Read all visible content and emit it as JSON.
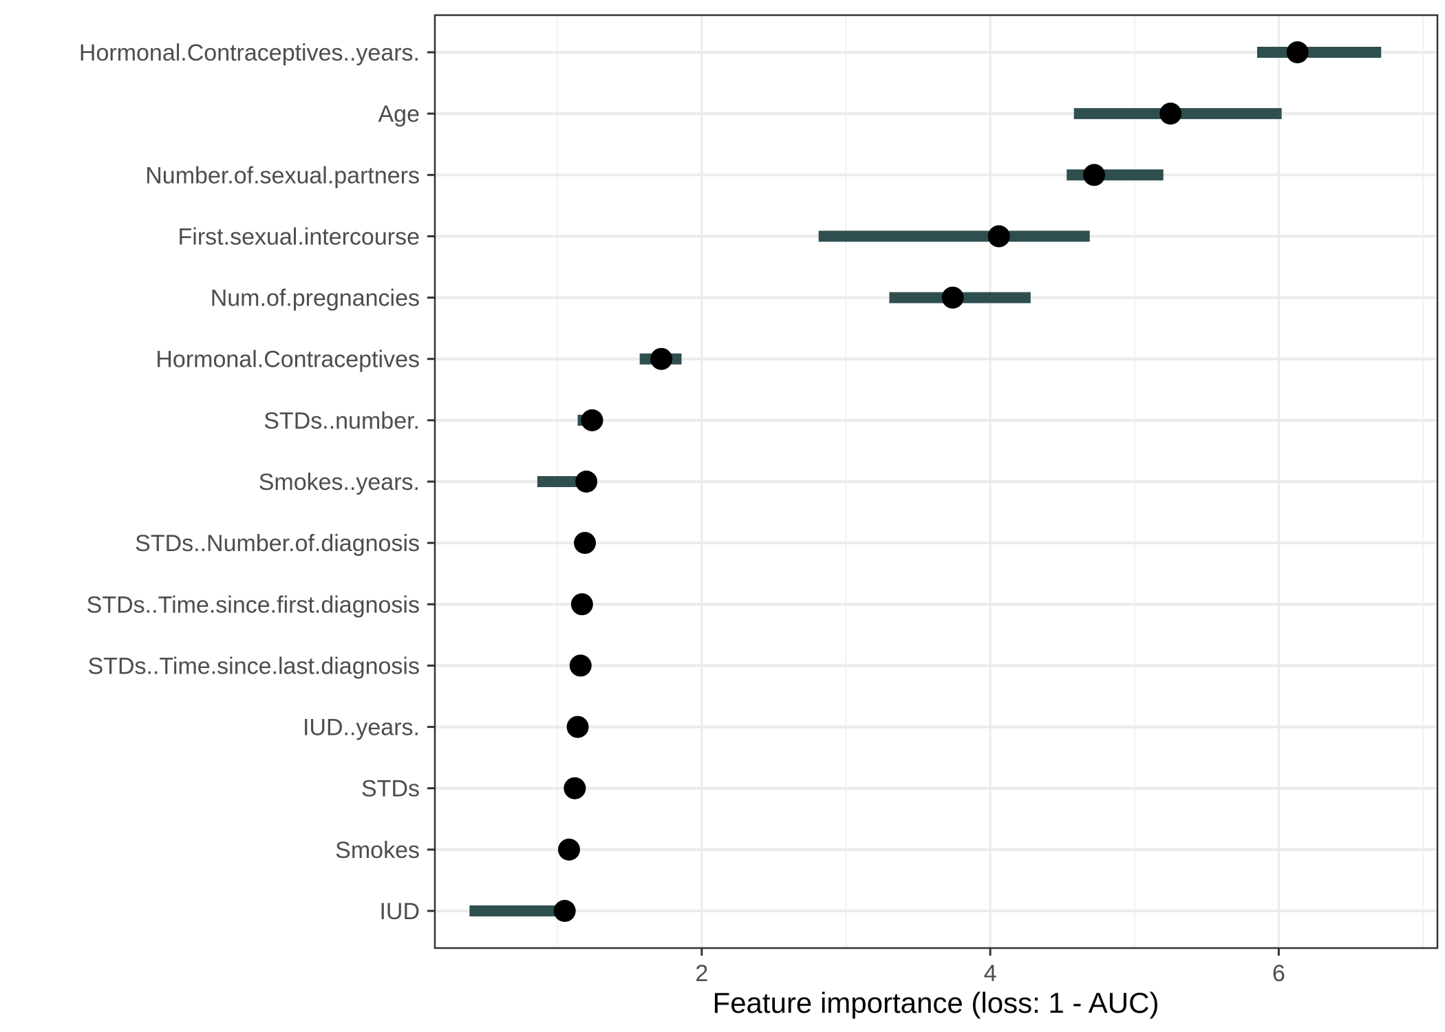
{
  "chart_data": {
    "type": "dot-interval",
    "xlabel": "Feature importance (loss: 1 - AUC)",
    "ylabel": "",
    "xlim": [
      0.15,
      7.1
    ],
    "x_ticks": [
      2,
      4,
      6
    ],
    "x_tick_labels": [
      "2",
      "4",
      "6"
    ],
    "grid": true,
    "legend": "none",
    "features": [
      {
        "name": "Hormonal.Contraceptives..years.",
        "importance": 6.13,
        "lower": 5.85,
        "upper": 6.71
      },
      {
        "name": "Age",
        "importance": 5.25,
        "lower": 4.58,
        "upper": 6.02
      },
      {
        "name": "Number.of.sexual.partners",
        "importance": 4.72,
        "lower": 4.53,
        "upper": 5.2
      },
      {
        "name": "First.sexual.intercourse",
        "importance": 4.06,
        "lower": 2.81,
        "upper": 4.69
      },
      {
        "name": "Num.of.pregnancies",
        "importance": 3.74,
        "lower": 3.3,
        "upper": 4.28
      },
      {
        "name": "Hormonal.Contraceptives",
        "importance": 1.72,
        "lower": 1.57,
        "upper": 1.86
      },
      {
        "name": "STDs..number.",
        "importance": 1.24,
        "lower": 1.14,
        "upper": 1.27
      },
      {
        "name": "Smokes..years.",
        "importance": 1.2,
        "lower": 0.86,
        "upper": 1.25
      },
      {
        "name": "STDs..Number.of.diagnosis",
        "importance": 1.19,
        "lower": 1.16,
        "upper": 1.21
      },
      {
        "name": "STDs..Time.since.first.diagnosis",
        "importance": 1.17,
        "lower": 1.15,
        "upper": 1.19
      },
      {
        "name": "STDs..Time.since.last.diagnosis",
        "importance": 1.16,
        "lower": 1.14,
        "upper": 1.18
      },
      {
        "name": "IUD..years.",
        "importance": 1.14,
        "lower": 1.12,
        "upper": 1.16
      },
      {
        "name": "STDs",
        "importance": 1.12,
        "lower": 1.1,
        "upper": 1.14
      },
      {
        "name": "Smokes",
        "importance": 1.08,
        "lower": 1.06,
        "upper": 1.1
      },
      {
        "name": "IUD",
        "importance": 1.05,
        "lower": 0.39,
        "upper": 1.1
      }
    ],
    "colors": {
      "interval": "#2f4f4f",
      "point": "#000000",
      "grid_major": "#ebebeb",
      "grid_minor": "#f2f2f2",
      "panel_border": "#333333",
      "tick_label": "#4d4d4d"
    }
  }
}
